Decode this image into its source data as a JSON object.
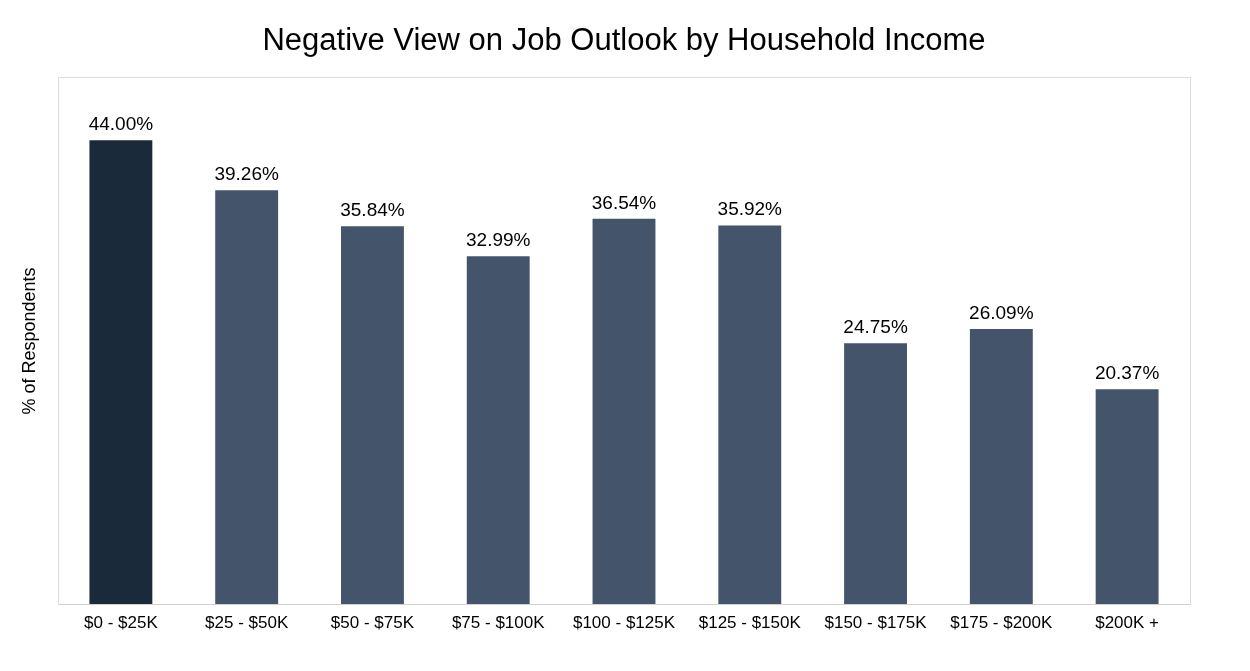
{
  "chart_data": {
    "type": "bar",
    "title": "Negative View on Job Outlook by Household Income",
    "ylabel": "% of Respondents",
    "categories": [
      "$0 - $25K",
      "$25 - $50K",
      "$50 - $75K",
      "$75 - $100K",
      "$100 - $125K",
      "$125 - $150K",
      "$150 - $175K",
      "$175 - $200K",
      "$200K +"
    ],
    "values": [
      44.0,
      39.26,
      35.84,
      32.99,
      36.54,
      35.92,
      24.75,
      26.09,
      20.37
    ],
    "value_labels": [
      "44.00%",
      "39.26%",
      "35.84%",
      "32.99%",
      "36.54%",
      "35.92%",
      "24.75%",
      "26.09%",
      "20.37%"
    ],
    "colors": [
      "#1a2a3b",
      "#44546a",
      "#44546a",
      "#44546a",
      "#44546a",
      "#44546a",
      "#44546a",
      "#44546a",
      "#44546a"
    ],
    "ylim": [
      0,
      50
    ],
    "tick_labels": "x"
  }
}
